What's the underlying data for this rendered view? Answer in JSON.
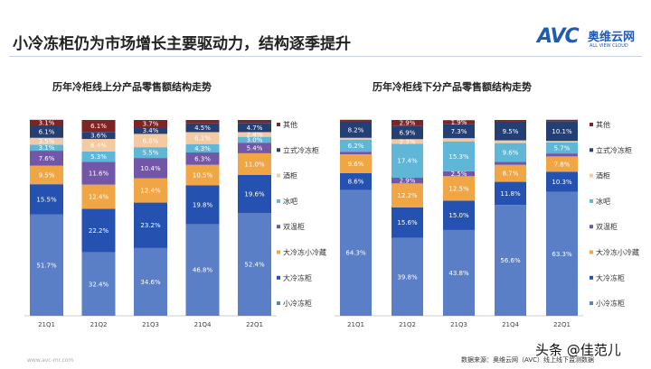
{
  "header": {
    "title": "小冷冻柜仍为市场增长主要驱动力，结构逐季提升",
    "logo": "AVC 奥维云网 ALL VIEW CLOUD",
    "logo_mark": "AVC",
    "logo_cn": "奥维云网",
    "logo_en": "ALL VIEW CLOUD"
  },
  "footer": {
    "website": "www.avc-mr.com",
    "source": "数据来源：奥维云网（AVC）线上线下监测数据",
    "watermark": "头条 @佳范儿"
  },
  "colors": {
    "小冷冻柜": "#5a7fc6",
    "大冷冻柜": "#2552b0",
    "大冷冻小冷藏": "#f0a645",
    "双温柜": "#7257a8",
    "冰吧": "#5fb6d6",
    "酒柜": "#f3caa2",
    "立式冷冻柜": "#243f74",
    "其他": "#7e2424"
  },
  "chart_data": [
    {
      "type": "bar",
      "stacked": true,
      "title": "历年冷柜线上分产品零售额结构走势",
      "categories": [
        "21Q1",
        "21Q2",
        "21Q3",
        "21Q4",
        "22Q1"
      ],
      "ylim": [
        0,
        100
      ],
      "unit": "%",
      "legend": "right",
      "series": [
        {
          "name": "小冷冻柜",
          "values": [
            51.7,
            32.4,
            34.6,
            46.8,
            52.4
          ]
        },
        {
          "name": "大冷冻柜",
          "values": [
            15.5,
            22.2,
            23.2,
            19.8,
            19.6
          ]
        },
        {
          "name": "大冷冻小冷藏",
          "values": [
            9.5,
            12.4,
            12.4,
            10.5,
            11.0
          ]
        },
        {
          "name": "双温柜",
          "values": [
            7.6,
            11.6,
            10.4,
            6.3,
            5.4
          ]
        },
        {
          "name": "冰吧",
          "values": [
            3.1,
            5.3,
            5.5,
            4.3,
            3.0
          ]
        },
        {
          "name": "酒柜",
          "values": [
            3.5,
            6.4,
            6.8,
            6.1,
            2.4
          ]
        },
        {
          "name": "立式冷冻柜",
          "values": [
            6.1,
            3.6,
            3.4,
            4.5,
            4.7
          ]
        },
        {
          "name": "其他",
          "values": [
            3.1,
            6.1,
            3.7,
            1.7,
            1.5
          ]
        }
      ]
    },
    {
      "type": "bar",
      "stacked": true,
      "title": "历年冷柜线下分产品零售额结构走势",
      "categories": [
        "21Q1",
        "21Q2",
        "21Q3",
        "21Q4",
        "22Q1"
      ],
      "ylim": [
        0,
        100
      ],
      "unit": "%",
      "legend": "right",
      "series": [
        {
          "name": "小冷冻柜",
          "values": [
            64.3,
            39.8,
            43.8,
            56.6,
            63.3
          ]
        },
        {
          "name": "大冷冻柜",
          "values": [
            8.6,
            15.6,
            15.0,
            11.8,
            10.3
          ]
        },
        {
          "name": "大冷冻小冷藏",
          "values": [
            9.6,
            12.2,
            12.5,
            8.7,
            7.8
          ]
        },
        {
          "name": "双温柜",
          "values": [
            1.3,
            2.9,
            2.5,
            1.5,
            1.5
          ]
        },
        {
          "name": "冰吧",
          "values": [
            6.2,
            17.4,
            15.3,
            9.6,
            5.7
          ]
        },
        {
          "name": "酒柜",
          "values": [
            0.9,
            2.3,
            1.6,
            1.4,
            0.7
          ]
        },
        {
          "name": "立式冷冻柜",
          "values": [
            8.2,
            6.9,
            7.3,
            9.5,
            10.1
          ]
        },
        {
          "name": "其他",
          "values": [
            1.0,
            2.9,
            1.9,
            0.9,
            0.7
          ]
        }
      ]
    }
  ]
}
